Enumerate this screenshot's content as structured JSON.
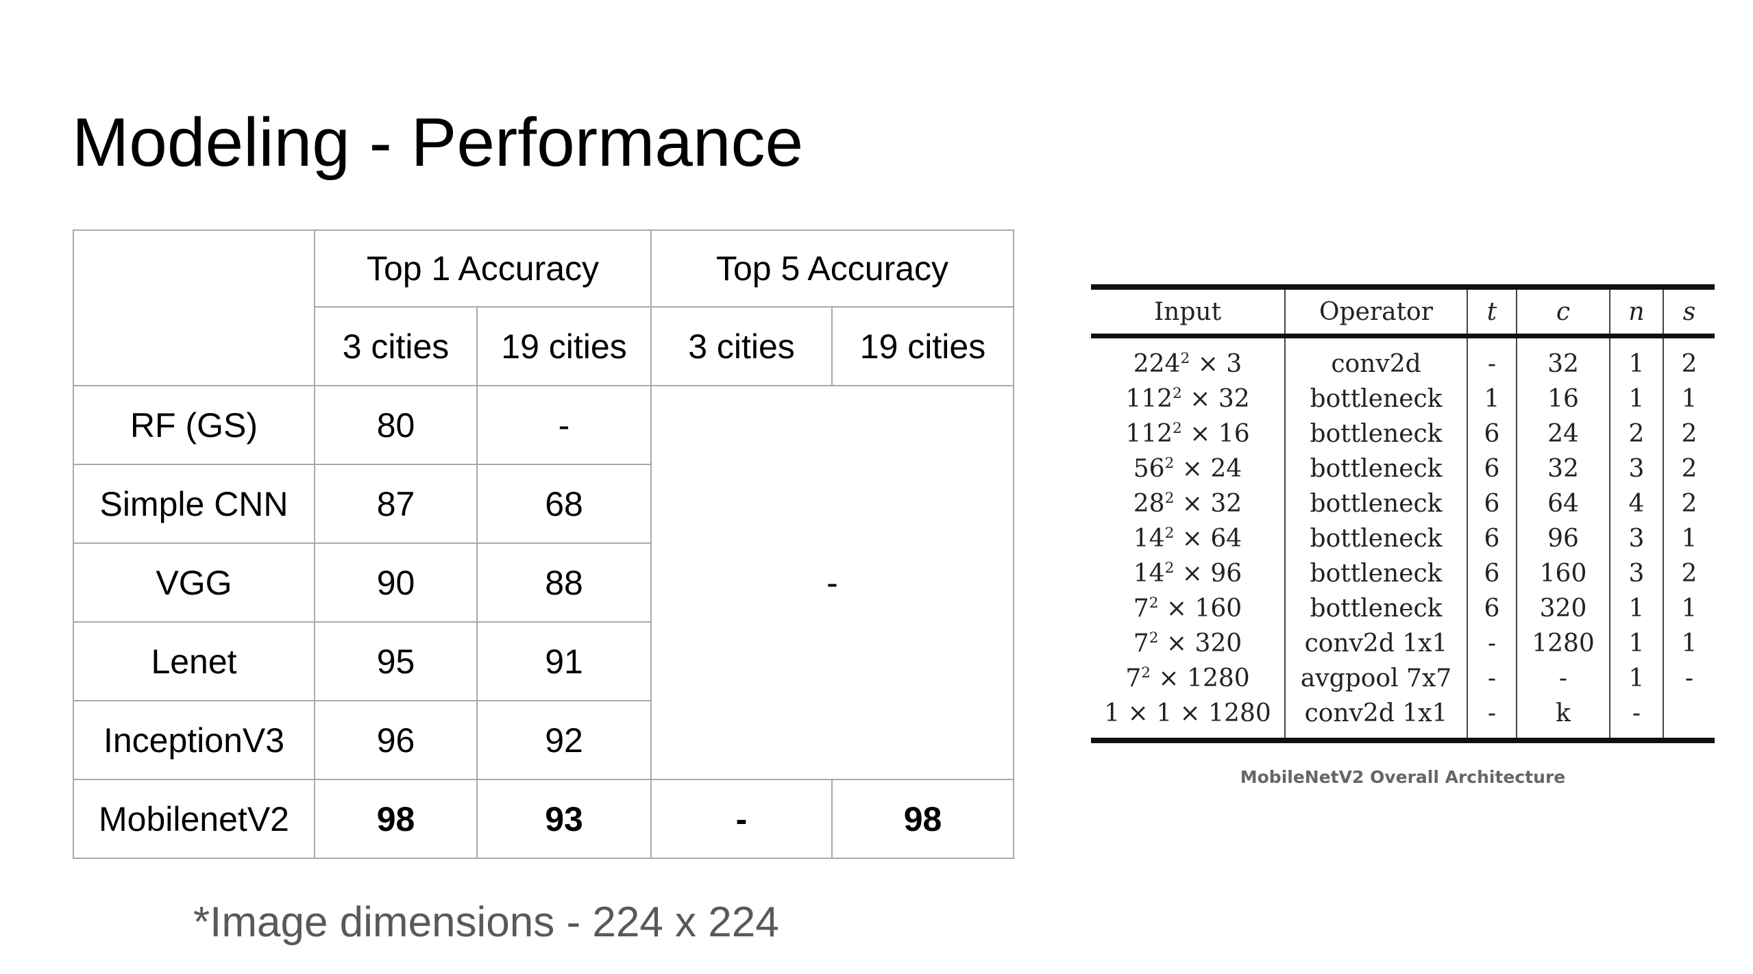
{
  "title": "Modeling - Performance",
  "perf_table": {
    "group_headers": [
      "Top 1 Accuracy",
      "Top 5 Accuracy"
    ],
    "sub_headers": [
      "3 cities",
      "19 cities",
      "3 cities",
      "19 cities"
    ],
    "rows": [
      {
        "model": "RF (GS)",
        "top1_3": "80",
        "top1_19": "-"
      },
      {
        "model": "Simple CNN",
        "top1_3": "87",
        "top1_19": "68"
      },
      {
        "model": "VGG",
        "top1_3": "90",
        "top1_19": "88"
      },
      {
        "model": "Lenet",
        "top1_3": "95",
        "top1_19": "91"
      },
      {
        "model": "InceptionV3",
        "top1_3": "96",
        "top1_19": "92"
      }
    ],
    "merged_top5": "-",
    "last_row": {
      "model": "MobilenetV2",
      "top1_3": "98",
      "top1_19": "93",
      "top5_3": "-",
      "top5_19": "98"
    }
  },
  "footnote": "*Image dimensions - 224 x 224",
  "arch_table": {
    "headers": [
      "Input",
      "Operator",
      "t",
      "c",
      "n",
      "s"
    ],
    "rows": [
      {
        "base": "224",
        "exp": "2",
        "rest": " × 3",
        "op": "conv2d",
        "t": "-",
        "c": "32",
        "n": "1",
        "s": "2"
      },
      {
        "base": "112",
        "exp": "2",
        "rest": " × 32",
        "op": "bottleneck",
        "t": "1",
        "c": "16",
        "n": "1",
        "s": "1"
      },
      {
        "base": "112",
        "exp": "2",
        "rest": " × 16",
        "op": "bottleneck",
        "t": "6",
        "c": "24",
        "n": "2",
        "s": "2"
      },
      {
        "base": "56",
        "exp": "2",
        "rest": " × 24",
        "op": "bottleneck",
        "t": "6",
        "c": "32",
        "n": "3",
        "s": "2"
      },
      {
        "base": "28",
        "exp": "2",
        "rest": " × 32",
        "op": "bottleneck",
        "t": "6",
        "c": "64",
        "n": "4",
        "s": "2"
      },
      {
        "base": "14",
        "exp": "2",
        "rest": " × 64",
        "op": "bottleneck",
        "t": "6",
        "c": "96",
        "n": "3",
        "s": "1"
      },
      {
        "base": "14",
        "exp": "2",
        "rest": " × 96",
        "op": "bottleneck",
        "t": "6",
        "c": "160",
        "n": "3",
        "s": "2"
      },
      {
        "base": "7",
        "exp": "2",
        "rest": " × 160",
        "op": "bottleneck",
        "t": "6",
        "c": "320",
        "n": "1",
        "s": "1"
      },
      {
        "base": "7",
        "exp": "2",
        "rest": " × 320",
        "op": "conv2d 1x1",
        "t": "-",
        "c": "1280",
        "n": "1",
        "s": "1"
      },
      {
        "base": "7",
        "exp": "2",
        "rest": " × 1280",
        "op": "avgpool 7x7",
        "t": "-",
        "c": "-",
        "n": "1",
        "s": "-"
      },
      {
        "base": "1 × 1 × 1280",
        "exp": "",
        "rest": "",
        "op": "conv2d 1x1",
        "t": "-",
        "c": "k",
        "n": "-",
        "s": ""
      }
    ]
  },
  "arch_caption": "MobileNetV2 Overall Architecture"
}
